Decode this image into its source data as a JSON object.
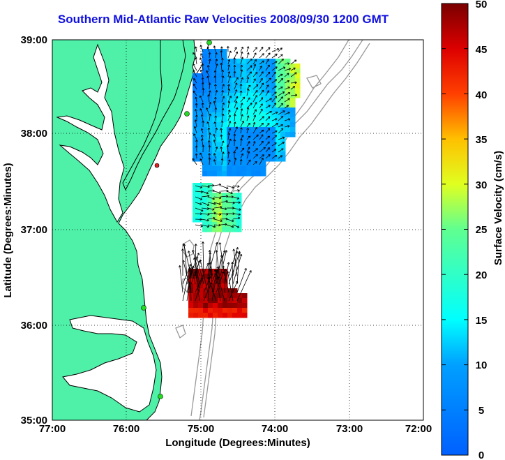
{
  "title": "Southern Mid-Atlantic Raw Velocities 2008/09/30 1200 GMT",
  "axes": {
    "xlabel": "Longitude (Degrees:Minutes)",
    "ylabel": "Latitude (Degrees:Minutes)",
    "xticks": [
      "77:00",
      "76:00",
      "75:00",
      "74:00",
      "73:00",
      "72:00"
    ],
    "yticks": [
      "39:00",
      "38:00",
      "37:00",
      "36:00",
      "35:00"
    ]
  },
  "colorbar": {
    "label": "Surface Velocity (cm/s)",
    "range": [
      0,
      50
    ],
    "ticks": [
      "0",
      "5",
      "10",
      "15",
      "20",
      "25",
      "30",
      "35",
      "40",
      "45",
      "50"
    ]
  },
  "colors": {
    "land": "#4ff0a8",
    "water": "#ffffff",
    "coastline": "#000000",
    "bathymetry": "#999999",
    "grid": "#000000",
    "station": "#22dd22",
    "station_alt": "#dd2222"
  }
}
